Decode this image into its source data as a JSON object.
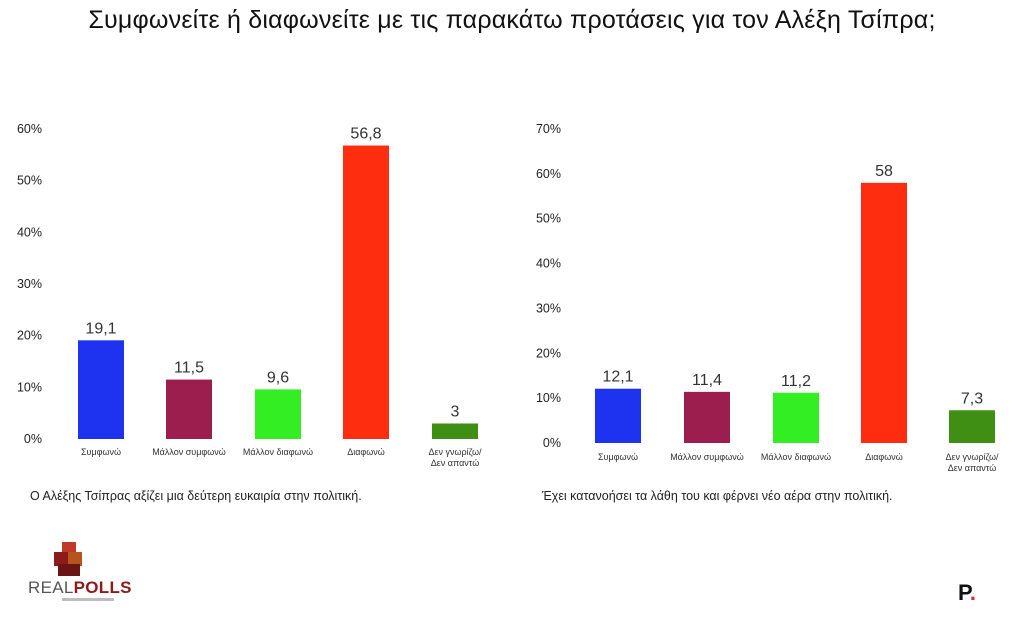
{
  "title": "Συμφωνείτε ή διαφωνείτε με τις παρακάτω προτάσεις για τον Αλέξη Τσίπρα;",
  "colors": {
    "bars": [
      "#1e33f0",
      "#9b1e4e",
      "#33ee22",
      "#ff2d10",
      "#3f8f14"
    ],
    "grid": "#d8d8d8"
  },
  "chart_data": [
    {
      "type": "bar",
      "title": "",
      "categories": [
        "Συμφωνώ",
        "Μάλλον συμφωνώ",
        "Μάλλον διαφωνώ",
        "Διαφωνώ",
        "Δεν γνωρίζω/Δεν απαντώ"
      ],
      "values": [
        19.1,
        11.5,
        9.6,
        56.8,
        3
      ],
      "value_labels": [
        "19,1",
        "11,5",
        "9,6",
        "56,8",
        "3"
      ],
      "ylim": [
        0,
        60
      ],
      "yticks": [
        "0%",
        "10%",
        "20%",
        "30%",
        "40%",
        "50%",
        "60%"
      ],
      "grid": false,
      "caption": "Ο Αλέξης Τσίπρας αξίζει μια δεύτερη ευκαιρία στην πολιτική."
    },
    {
      "type": "bar",
      "title": "",
      "categories": [
        "Συμφωνώ",
        "Μάλλον συμφωνώ",
        "Μάλλον διαφωνώ",
        "Διαφωνώ",
        "Δεν γνωρίζω/Δεν απαντώ"
      ],
      "values": [
        12.1,
        11.4,
        11.2,
        58,
        7.3
      ],
      "value_labels": [
        "12,1",
        "11,4",
        "11,2",
        "58",
        "7,3"
      ],
      "ylim": [
        0,
        70
      ],
      "yticks": [
        "0%",
        "10%",
        "20%",
        "30%",
        "40%",
        "50%",
        "60%",
        "70%"
      ],
      "grid": false,
      "caption": "Έχει κατανοήσει τα λάθη του και φέρνει νέο αέρα στην πολιτική."
    }
  ],
  "logos": {
    "left_text_a": "REAL",
    "left_text_b": "POLLS",
    "right_text": "P",
    "right_dot": "."
  }
}
